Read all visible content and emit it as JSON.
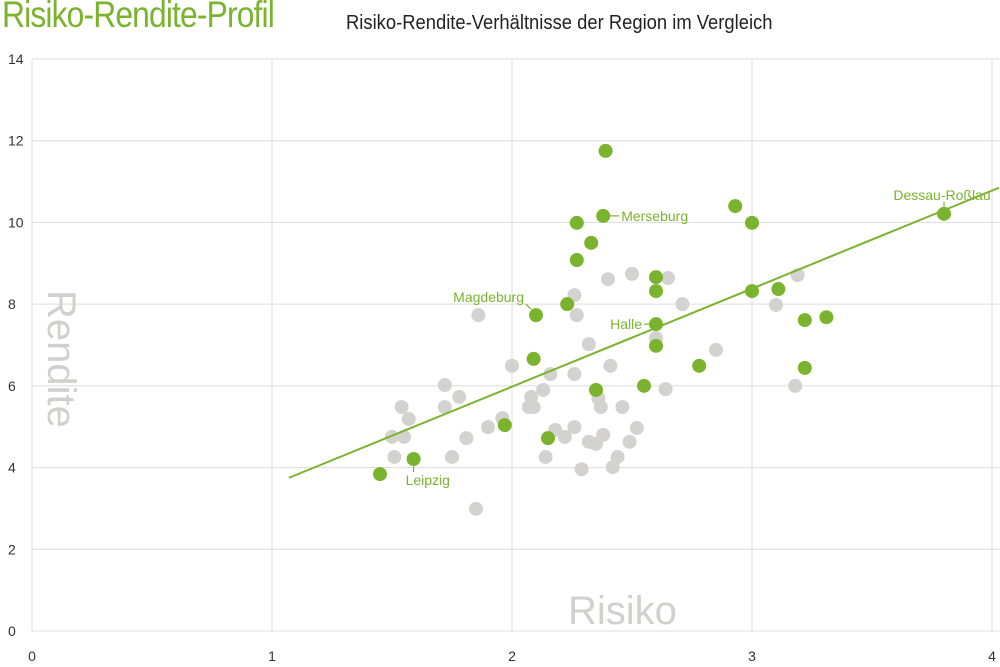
{
  "chart_data": {
    "type": "scatter",
    "title": "Risiko-Rendite-Profil",
    "subtitle": "Risiko-Rendite-Verhältnisse der Region im Vergleich",
    "xlabel": "Risiko",
    "ylabel": "Rendite",
    "xlim": [
      0,
      4
    ],
    "ylim": [
      0,
      14
    ],
    "xticks": [
      0,
      1,
      2,
      3,
      4
    ],
    "yticks": [
      0,
      2,
      4,
      6,
      8,
      10,
      12,
      14
    ],
    "grid": true,
    "colors": {
      "highlight": "#7ab32e",
      "other": "#d4d2cf",
      "grid": "#dcdcdc",
      "trend": "#7ab32e"
    },
    "series": [
      {
        "color_role": "other",
        "points": [
          [
            2.32,
            7.02
          ],
          [
            2.0,
            6.49
          ],
          [
            1.72,
            6.02
          ],
          [
            1.78,
            5.73
          ],
          [
            1.54,
            5.48
          ],
          [
            1.72,
            5.48
          ],
          [
            1.57,
            5.19
          ],
          [
            2.16,
            6.29
          ],
          [
            2.26,
            6.29
          ],
          [
            2.41,
            6.49
          ],
          [
            2.13,
            5.9
          ],
          [
            2.08,
            5.73
          ],
          [
            2.07,
            5.48
          ],
          [
            2.09,
            5.48
          ],
          [
            1.96,
            5.21
          ],
          [
            2.36,
            5.7
          ],
          [
            2.37,
            5.48
          ],
          [
            2.46,
            5.48
          ],
          [
            2.64,
            5.92
          ],
          [
            1.5,
            4.75
          ],
          [
            1.55,
            4.75
          ],
          [
            1.81,
            4.72
          ],
          [
            1.9,
            4.99
          ],
          [
            2.18,
            4.92
          ],
          [
            2.22,
            4.75
          ],
          [
            2.26,
            4.99
          ],
          [
            2.32,
            4.63
          ],
          [
            2.35,
            4.58
          ],
          [
            2.38,
            4.8
          ],
          [
            2.52,
            4.97
          ],
          [
            2.49,
            4.63
          ],
          [
            2.44,
            4.26
          ],
          [
            2.42,
            4.01
          ],
          [
            2.29,
            3.96
          ],
          [
            2.14,
            4.26
          ],
          [
            1.75,
            4.26
          ],
          [
            1.51,
            4.26
          ],
          [
            1.85,
            2.99
          ],
          [
            1.86,
            7.73
          ],
          [
            2.4,
            8.61
          ],
          [
            2.5,
            8.74
          ],
          [
            2.65,
            8.64
          ],
          [
            2.26,
            8.22
          ],
          [
            2.27,
            7.73
          ],
          [
            2.71,
            8.0
          ],
          [
            2.6,
            7.17
          ],
          [
            2.85,
            6.88
          ],
          [
            3.1,
            7.98
          ],
          [
            3.19,
            8.71
          ],
          [
            3.18,
            6.0
          ]
        ]
      },
      {
        "color_role": "highlight",
        "points": [
          [
            1.45,
            3.84
          ],
          [
            1.59,
            4.21
          ],
          [
            1.97,
            5.04
          ],
          [
            2.15,
            4.72
          ],
          [
            2.09,
            6.66
          ],
          [
            2.1,
            7.73
          ],
          [
            2.23,
            8.0
          ],
          [
            2.27,
            9.08
          ],
          [
            2.27,
            9.99
          ],
          [
            2.33,
            9.5
          ],
          [
            2.38,
            10.16
          ],
          [
            2.39,
            11.75
          ],
          [
            2.35,
            5.9
          ],
          [
            2.55,
            6.0
          ],
          [
            2.6,
            8.66
          ],
          [
            2.6,
            8.32
          ],
          [
            2.6,
            7.51
          ],
          [
            2.6,
            6.98
          ],
          [
            2.78,
            6.49
          ],
          [
            2.93,
            10.4
          ],
          [
            3.0,
            9.99
          ],
          [
            3.0,
            8.32
          ],
          [
            3.11,
            8.37
          ],
          [
            3.22,
            7.61
          ],
          [
            3.31,
            7.68
          ],
          [
            3.22,
            6.44
          ],
          [
            3.8,
            10.21
          ]
        ]
      }
    ],
    "trendline": {
      "slope": 2.4,
      "intercept": 1.18,
      "x_range": [
        1.07,
        4.03
      ]
    },
    "annotations": [
      {
        "label": "Leipzig",
        "x": 1.59,
        "y": 4.21
      },
      {
        "label": "Magdeburg",
        "x": 2.1,
        "y": 7.73
      },
      {
        "label": "Merseburg",
        "x": 2.38,
        "y": 10.16
      },
      {
        "label": "Halle",
        "x": 2.6,
        "y": 7.51
      },
      {
        "label": "Dessau-Roßlau",
        "x": 3.8,
        "y": 10.21
      }
    ]
  }
}
